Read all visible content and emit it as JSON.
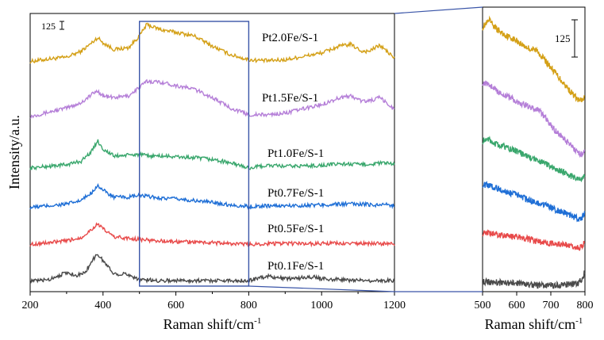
{
  "chart_data": [
    {
      "type": "line",
      "title": "",
      "xlabel": "Raman shift/cm-1",
      "xlabel_parts": [
        "Raman shift/cm",
        "-1"
      ],
      "ylabel": "Intensity/a.u.",
      "xlim": [
        200,
        1200
      ],
      "xticks": [
        "200",
        "400",
        "600",
        "800",
        "1000",
        "1200"
      ],
      "y_scale_bar": "125",
      "zoom_box": {
        "x_range": [
          500,
          800
        ]
      },
      "series": [
        {
          "name": "Pt2.0Fe/S-1",
          "color": "#d4a017",
          "offset": 1280,
          "x": [
            200,
            250,
            300,
            340,
            370,
            385,
            400,
            430,
            470,
            500,
            520,
            560,
            600,
            650,
            700,
            750,
            800,
            850,
            900,
            1000,
            1050,
            1080,
            1110,
            1130,
            1160,
            1200
          ],
          "y": [
            0,
            15,
            25,
            60,
            110,
            140,
            110,
            70,
            80,
            150,
            215,
            185,
            170,
            150,
            90,
            40,
            10,
            5,
            10,
            50,
            90,
            100,
            60,
            60,
            95,
            20
          ]
        },
        {
          "name": "Pt1.5Fe/S-1",
          "color": "#b57fd8",
          "offset": 960,
          "x": [
            200,
            250,
            300,
            340,
            370,
            385,
            400,
            430,
            470,
            500,
            520,
            560,
            600,
            650,
            700,
            750,
            800,
            850,
            900,
            1000,
            1050,
            1080,
            1110,
            1130,
            1160,
            1200
          ],
          "y": [
            0,
            25,
            50,
            80,
            130,
            150,
            120,
            110,
            120,
            170,
            205,
            200,
            180,
            160,
            110,
            50,
            10,
            10,
            20,
            70,
            110,
            120,
            90,
            90,
            110,
            40
          ]
        },
        {
          "name": "Pt1.0Fe/S-1",
          "color": "#3aa76d",
          "offset": 660,
          "x": [
            200,
            250,
            300,
            340,
            370,
            385,
            400,
            430,
            470,
            500,
            520,
            560,
            600,
            650,
            700,
            750,
            800,
            850,
            900,
            1000,
            1050,
            1100,
            1150,
            1170,
            1200
          ],
          "y": [
            0,
            10,
            20,
            40,
            100,
            160,
            110,
            70,
            75,
            80,
            70,
            70,
            65,
            60,
            50,
            30,
            0,
            15,
            10,
            15,
            25,
            20,
            25,
            30,
            20
          ]
        },
        {
          "name": "Pt0.7Fe/S-1",
          "color": "#1f6fd6",
          "offset": 430,
          "x": [
            200,
            250,
            300,
            340,
            370,
            385,
            400,
            430,
            470,
            500,
            520,
            560,
            600,
            650,
            700,
            750,
            800,
            850,
            900,
            1000,
            1050,
            1100,
            1150,
            1170,
            1200
          ],
          "y": [
            0,
            10,
            20,
            40,
            90,
            130,
            100,
            60,
            60,
            70,
            65,
            55,
            50,
            40,
            30,
            15,
            5,
            10,
            10,
            15,
            20,
            20,
            15,
            20,
            10
          ]
        },
        {
          "name": "Pt0.5Fe/S-1",
          "color": "#e84a4a",
          "offset": 215,
          "x": [
            200,
            250,
            300,
            340,
            370,
            385,
            400,
            430,
            470,
            500,
            520,
            560,
            600,
            650,
            700,
            750,
            800,
            850,
            900,
            1000,
            1050,
            1100,
            1150,
            1200
          ],
          "y": [
            0,
            10,
            20,
            40,
            90,
            120,
            90,
            45,
            35,
            30,
            25,
            20,
            15,
            15,
            10,
            5,
            0,
            5,
            5,
            5,
            5,
            5,
            5,
            0
          ]
        },
        {
          "name": "Pt0.1Fe/S-1",
          "color": "#4a4a4a",
          "offset": 0,
          "x": [
            200,
            250,
            285,
            300,
            330,
            350,
            370,
            385,
            400,
            430,
            470,
            500,
            550,
            600,
            700,
            800,
            850,
            900,
            980,
            1000,
            1050,
            1100,
            1150,
            1200
          ],
          "y": [
            0,
            10,
            40,
            50,
            35,
            50,
            120,
            160,
            120,
            45,
            40,
            10,
            5,
            5,
            5,
            5,
            30,
            15,
            25,
            15,
            10,
            5,
            5,
            5
          ]
        }
      ]
    },
    {
      "type": "line",
      "title": "",
      "xlabel": "Raman shift/cm-1",
      "xlabel_parts": [
        "Raman shift/cm",
        "-1"
      ],
      "xlim": [
        500,
        800
      ],
      "xticks": [
        "500",
        "600",
        "700",
        "800"
      ],
      "y_scale_bar": "125",
      "series": [
        {
          "name": "Pt2.0Fe/S-1",
          "color": "#d4a017",
          "offset": 1100,
          "x": [
            500,
            520,
            540,
            560,
            580,
            600,
            620,
            640,
            660,
            680,
            700,
            720,
            740,
            760,
            780,
            790,
            800
          ],
          "y": [
            460,
            500,
            450,
            420,
            400,
            380,
            350,
            330,
            320,
            270,
            220,
            170,
            120,
            70,
            25,
            20,
            40
          ]
        },
        {
          "name": "Pt1.5Fe/S-1",
          "color": "#b57fd8",
          "offset": 780,
          "x": [
            500,
            520,
            540,
            560,
            580,
            600,
            620,
            640,
            660,
            680,
            700,
            720,
            740,
            760,
            780,
            790,
            800
          ],
          "y": [
            450,
            440,
            400,
            380,
            360,
            340,
            320,
            300,
            290,
            250,
            190,
            150,
            110,
            70,
            30,
            20,
            50
          ]
        },
        {
          "name": "Pt1.0Fe/S-1",
          "color": "#3aa76d",
          "offset": 620,
          "x": [
            500,
            520,
            540,
            560,
            580,
            600,
            620,
            640,
            660,
            680,
            700,
            720,
            740,
            760,
            780,
            790,
            800
          ],
          "y": [
            260,
            270,
            240,
            230,
            215,
            200,
            180,
            160,
            145,
            130,
            110,
            90,
            75,
            50,
            30,
            30,
            60
          ]
        },
        {
          "name": "Pt0.7Fe/S-1",
          "color": "#1f6fd6",
          "offset": 400,
          "x": [
            500,
            520,
            540,
            560,
            580,
            600,
            620,
            640,
            660,
            680,
            700,
            720,
            740,
            760,
            780,
            790,
            800
          ],
          "y": [
            220,
            215,
            200,
            185,
            170,
            160,
            140,
            125,
            110,
            95,
            80,
            65,
            50,
            35,
            15,
            20,
            50
          ]
        },
        {
          "name": "Pt0.5Fe/S-1",
          "color": "#e84a4a",
          "offset": 220,
          "x": [
            500,
            520,
            540,
            560,
            580,
            600,
            620,
            640,
            660,
            680,
            700,
            720,
            740,
            760,
            780,
            790,
            800
          ],
          "y": [
            110,
            110,
            100,
            95,
            90,
            85,
            80,
            70,
            60,
            55,
            50,
            45,
            40,
            30,
            20,
            25,
            60
          ]
        },
        {
          "name": "Pt0.1Fe/S-1",
          "color": "#4a4a4a",
          "offset": 0,
          "x": [
            500,
            520,
            540,
            560,
            580,
            600,
            620,
            640,
            660,
            680,
            700,
            720,
            740,
            760,
            780,
            790,
            800
          ],
          "y": [
            40,
            38,
            35,
            32,
            30,
            28,
            25,
            22,
            20,
            18,
            18,
            20,
            22,
            25,
            30,
            50,
            100
          ]
        }
      ]
    }
  ]
}
